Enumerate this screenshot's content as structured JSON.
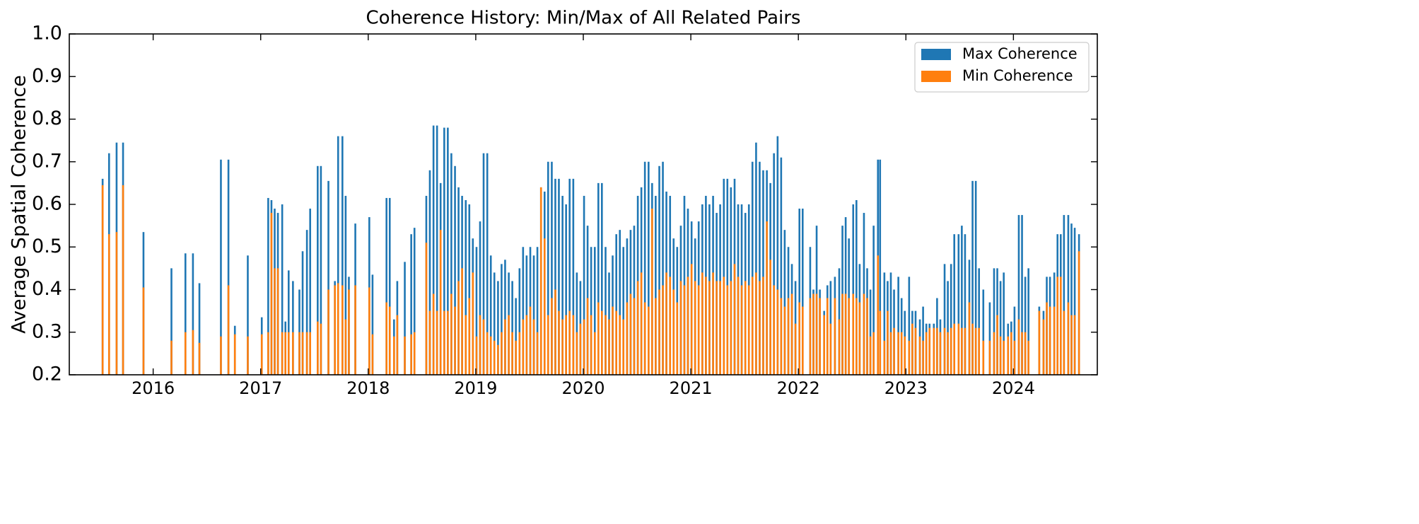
{
  "chart_data": {
    "type": "bar",
    "title": "Coherence History: Min/Max of All Related Pairs",
    "y_label": "Average Spatial Coherence",
    "x": [
      2015.53,
      2015.59,
      2015.66,
      2015.72,
      2015.91,
      2016.17,
      2016.3,
      2016.37,
      2016.43,
      2016.63,
      2016.7,
      2016.76,
      2016.88,
      2017.01,
      2017.07,
      2017.1,
      2017.13,
      2017.16,
      2017.2,
      2017.23,
      2017.26,
      2017.3,
      2017.36,
      2017.39,
      2017.43,
      2017.46,
      2017.53,
      2017.56,
      2017.63,
      2017.69,
      2017.72,
      2017.76,
      2017.79,
      2017.82,
      2017.88,
      2018.01,
      2018.04,
      2018.17,
      2018.2,
      2018.24,
      2018.27,
      2018.34,
      2018.4,
      2018.43,
      2018.54,
      2018.573,
      2018.607,
      2018.64,
      2018.673,
      2018.707,
      2018.74,
      2018.773,
      2018.807,
      2018.84,
      2018.873,
      2018.907,
      2018.94,
      2018.973,
      2019.007,
      2019.04,
      2019.073,
      2019.107,
      2019.14,
      2019.173,
      2019.207,
      2019.24,
      2019.273,
      2019.307,
      2019.34,
      2019.373,
      2019.407,
      2019.44,
      2019.473,
      2019.507,
      2019.54,
      2019.573,
      2019.607,
      2019.64,
      2019.673,
      2019.707,
      2019.74,
      2019.773,
      2019.807,
      2019.84,
      2019.873,
      2019.907,
      2019.94,
      2019.973,
      2020.007,
      2020.04,
      2020.073,
      2020.107,
      2020.14,
      2020.173,
      2020.207,
      2020.24,
      2020.273,
      2020.307,
      2020.34,
      2020.373,
      2020.407,
      2020.44,
      2020.473,
      2020.507,
      2020.54,
      2020.573,
      2020.607,
      2020.64,
      2020.673,
      2020.707,
      2020.74,
      2020.773,
      2020.807,
      2020.84,
      2020.873,
      2020.907,
      2020.94,
      2020.973,
      2021.007,
      2021.04,
      2021.073,
      2021.107,
      2021.14,
      2021.173,
      2021.207,
      2021.24,
      2021.273,
      2021.307,
      2021.34,
      2021.373,
      2021.407,
      2021.44,
      2021.473,
      2021.507,
      2021.54,
      2021.573,
      2021.607,
      2021.64,
      2021.673,
      2021.707,
      2021.74,
      2021.773,
      2021.807,
      2021.84,
      2021.873,
      2021.907,
      2021.94,
      2021.973,
      2022.01,
      2022.04,
      2022.11,
      2022.14,
      2022.17,
      2022.2,
      2022.24,
      2022.27,
      2022.3,
      2022.34,
      2022.38,
      2022.41,
      2022.44,
      2022.47,
      2022.51,
      2022.54,
      2022.57,
      2022.61,
      2022.64,
      2022.67,
      2022.7,
      2022.74,
      2022.76,
      2022.8,
      2022.83,
      2022.86,
      2022.89,
      2022.93,
      2022.96,
      2022.99,
      2023.03,
      2023.06,
      2023.09,
      2023.13,
      2023.16,
      2023.19,
      2023.22,
      2023.26,
      2023.29,
      2023.32,
      2023.36,
      2023.39,
      2023.42,
      2023.45,
      2023.49,
      2023.52,
      2023.55,
      2023.59,
      2023.62,
      2023.65,
      2023.68,
      2023.72,
      2023.78,
      2023.82,
      2023.85,
      2023.88,
      2023.91,
      2023.95,
      2023.98,
      2024.01,
      2024.05,
      2024.08,
      2024.11,
      2024.14,
      2024.24,
      2024.28,
      2024.31,
      2024.34,
      2024.38,
      2024.41,
      2024.44,
      2024.47,
      2024.51,
      2024.54,
      2024.57,
      2024.61
    ],
    "series": [
      {
        "name": "Max Coherence",
        "color": "#1f77b4",
        "values": [
          0.66,
          0.72,
          0.745,
          0.745,
          0.535,
          0.45,
          0.485,
          0.485,
          0.415,
          0.705,
          0.705,
          0.315,
          0.48,
          0.335,
          0.615,
          0.61,
          0.59,
          0.58,
          0.6,
          0.325,
          0.445,
          0.42,
          0.4,
          0.49,
          0.54,
          0.59,
          0.69,
          0.69,
          0.655,
          0.42,
          0.76,
          0.76,
          0.62,
          0.43,
          0.555,
          0.57,
          0.435,
          0.615,
          0.615,
          0.33,
          0.42,
          0.465,
          0.53,
          0.545,
          0.62,
          0.68,
          0.785,
          0.785,
          0.65,
          0.78,
          0.78,
          0.72,
          0.69,
          0.64,
          0.62,
          0.61,
          0.6,
          0.52,
          0.5,
          0.56,
          0.72,
          0.72,
          0.48,
          0.44,
          0.42,
          0.46,
          0.47,
          0.44,
          0.42,
          0.38,
          0.45,
          0.5,
          0.48,
          0.5,
          0.48,
          0.5,
          0.64,
          0.63,
          0.7,
          0.7,
          0.66,
          0.66,
          0.62,
          0.6,
          0.66,
          0.66,
          0.44,
          0.42,
          0.62,
          0.55,
          0.5,
          0.5,
          0.65,
          0.65,
          0.5,
          0.44,
          0.48,
          0.53,
          0.54,
          0.5,
          0.52,
          0.54,
          0.55,
          0.62,
          0.64,
          0.7,
          0.7,
          0.65,
          0.62,
          0.69,
          0.7,
          0.63,
          0.62,
          0.52,
          0.5,
          0.55,
          0.62,
          0.59,
          0.56,
          0.52,
          0.56,
          0.6,
          0.62,
          0.6,
          0.62,
          0.58,
          0.6,
          0.66,
          0.66,
          0.64,
          0.66,
          0.6,
          0.6,
          0.58,
          0.6,
          0.7,
          0.745,
          0.7,
          0.68,
          0.68,
          0.65,
          0.72,
          0.76,
          0.71,
          0.54,
          0.5,
          0.46,
          0.42,
          0.59,
          0.59,
          0.5,
          0.4,
          0.55,
          0.4,
          0.35,
          0.41,
          0.42,
          0.43,
          0.45,
          0.55,
          0.57,
          0.52,
          0.6,
          0.61,
          0.46,
          0.58,
          0.45,
          0.4,
          0.55,
          0.705,
          0.705,
          0.44,
          0.42,
          0.44,
          0.4,
          0.43,
          0.38,
          0.35,
          0.43,
          0.35,
          0.35,
          0.33,
          0.36,
          0.32,
          0.32,
          0.32,
          0.38,
          0.33,
          0.46,
          0.42,
          0.46,
          0.53,
          0.53,
          0.55,
          0.53,
          0.47,
          0.655,
          0.655,
          0.45,
          0.4,
          0.37,
          0.45,
          0.45,
          0.42,
          0.44,
          0.32,
          0.325,
          0.36,
          0.575,
          0.575,
          0.43,
          0.45,
          0.36,
          0.35,
          0.43,
          0.43,
          0.44,
          0.53,
          0.53,
          0.575,
          0.575,
          0.555,
          0.545,
          0.53
        ]
      },
      {
        "name": "Min Coherence",
        "color": "#ff7f0e",
        "values": [
          0.645,
          0.53,
          0.535,
          0.645,
          0.405,
          0.28,
          0.3,
          0.305,
          0.275,
          0.29,
          0.41,
          0.295,
          0.29,
          0.295,
          0.3,
          0.58,
          0.45,
          0.45,
          0.3,
          0.3,
          0.3,
          0.3,
          0.3,
          0.3,
          0.3,
          0.3,
          0.325,
          0.32,
          0.4,
          0.41,
          0.415,
          0.41,
          0.33,
          0.4,
          0.41,
          0.405,
          0.295,
          0.37,
          0.36,
          0.29,
          0.34,
          0.29,
          0.295,
          0.3,
          0.51,
          0.35,
          0.39,
          0.35,
          0.54,
          0.35,
          0.35,
          0.39,
          0.36,
          0.42,
          0.45,
          0.34,
          0.38,
          0.44,
          0.29,
          0.34,
          0.33,
          0.3,
          0.29,
          0.28,
          0.27,
          0.3,
          0.33,
          0.34,
          0.3,
          0.28,
          0.3,
          0.33,
          0.34,
          0.36,
          0.33,
          0.3,
          0.64,
          0.52,
          0.34,
          0.38,
          0.4,
          0.35,
          0.33,
          0.34,
          0.35,
          0.34,
          0.3,
          0.32,
          0.33,
          0.38,
          0.34,
          0.3,
          0.37,
          0.35,
          0.34,
          0.33,
          0.36,
          0.35,
          0.34,
          0.33,
          0.37,
          0.39,
          0.38,
          0.42,
          0.44,
          0.37,
          0.36,
          0.59,
          0.38,
          0.4,
          0.41,
          0.44,
          0.43,
          0.4,
          0.37,
          0.42,
          0.41,
          0.43,
          0.46,
          0.42,
          0.41,
          0.44,
          0.43,
          0.42,
          0.44,
          0.42,
          0.42,
          0.43,
          0.41,
          0.42,
          0.46,
          0.43,
          0.41,
          0.42,
          0.41,
          0.43,
          0.44,
          0.42,
          0.43,
          0.56,
          0.47,
          0.41,
          0.4,
          0.38,
          0.36,
          0.38,
          0.39,
          0.32,
          0.37,
          0.36,
          0.38,
          0.39,
          0.39,
          0.38,
          0.34,
          0.38,
          0.32,
          0.38,
          0.33,
          0.39,
          0.39,
          0.38,
          0.39,
          0.38,
          0.37,
          0.39,
          0.38,
          0.29,
          0.3,
          0.48,
          0.35,
          0.28,
          0.35,
          0.3,
          0.31,
          0.3,
          0.3,
          0.29,
          0.28,
          0.32,
          0.31,
          0.29,
          0.28,
          0.3,
          0.31,
          0.31,
          0.31,
          0.3,
          0.31,
          0.3,
          0.31,
          0.32,
          0.32,
          0.31,
          0.31,
          0.37,
          0.32,
          0.31,
          0.31,
          0.28,
          0.28,
          0.3,
          0.34,
          0.29,
          0.28,
          0.29,
          0.3,
          0.28,
          0.33,
          0.3,
          0.3,
          0.28,
          0.35,
          0.33,
          0.37,
          0.36,
          0.36,
          0.43,
          0.43,
          0.35,
          0.37,
          0.34,
          0.34,
          0.49
        ]
      }
    ],
    "xlim": [
      2015.22,
      2024.78
    ],
    "xticks": [
      2016,
      2017,
      2018,
      2019,
      2020,
      2021,
      2022,
      2023,
      2024
    ],
    "ylim": [
      0.2,
      1.0
    ],
    "yticks": [
      0.2,
      0.3,
      0.4,
      0.5,
      0.6,
      0.7,
      0.8,
      0.9,
      {
        "value": 1.0,
        "label": "1.0"
      }
    ],
    "legend": "upper right"
  }
}
